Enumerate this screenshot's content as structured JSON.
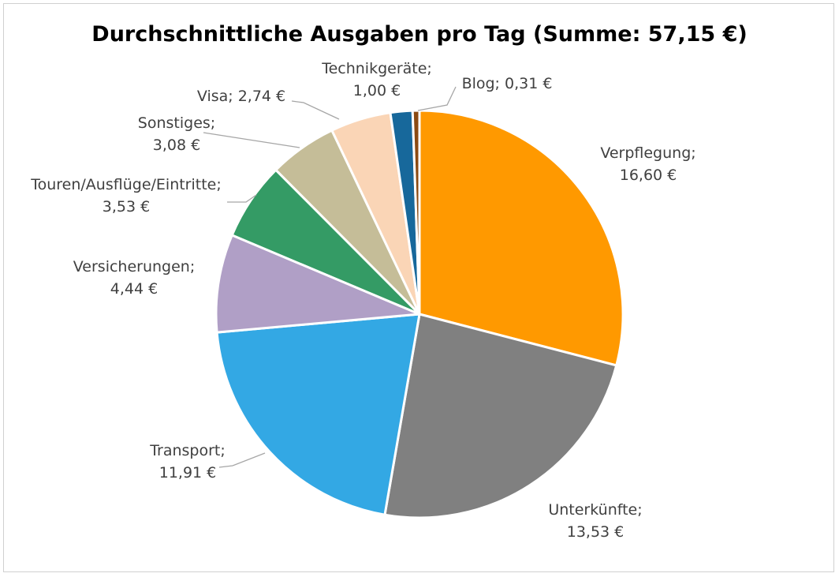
{
  "chart_data": {
    "type": "pie",
    "title": "Durchschnittliche Ausgaben pro Tag (Summe: 57,15 €)",
    "slices": [
      {
        "name": "Verpflegung",
        "value": 16.6,
        "label_name": "Verpflegung;",
        "label_value": "16,60 €",
        "color": "#FF9900"
      },
      {
        "name": "Unterkünfte",
        "value": 13.53,
        "label_name": "Unterkünfte;",
        "label_value": "13,53 €",
        "color": "#808080"
      },
      {
        "name": "Transport",
        "value": 11.91,
        "label_name": "Transport;",
        "label_value": "11,91 €",
        "color": "#33A8E4"
      },
      {
        "name": "Versicherungen",
        "value": 4.44,
        "label_name": "Versicherungen;",
        "label_value": "4,44 €",
        "color": "#B09FC6"
      },
      {
        "name": "Touren/Ausflüge/Eintritte",
        "value": 3.53,
        "label_name": "Touren/Ausflüge/Eintritte;",
        "label_value": "3,53 €",
        "color": "#349B65"
      },
      {
        "name": "Sonstiges",
        "value": 3.08,
        "label_name": "Sonstiges;",
        "label_value": "3,08 €",
        "color": "#C5BD98"
      },
      {
        "name": "Visa",
        "value": 2.74,
        "label_name": "Visa;",
        "label_value": "2,74 €",
        "color": "#FAD5B6"
      },
      {
        "name": "Technikgeräte",
        "value": 1.0,
        "label_name": "Technikgeräte;",
        "label_value": "1,00 €",
        "color": "#17689B"
      },
      {
        "name": "Blog",
        "value": 0.31,
        "label_name": "Blog;",
        "label_value": "0,31 €",
        "color": "#8B4A12"
      }
    ],
    "legend": "none",
    "label_leader_line_color": "#a6a6a6"
  }
}
